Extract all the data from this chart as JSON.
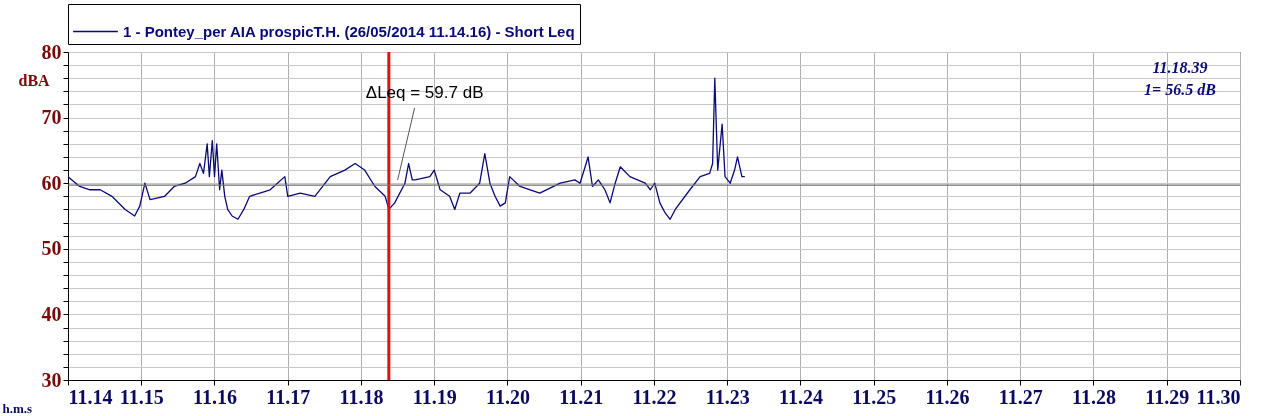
{
  "chart_data": {
    "type": "line",
    "xlabel": "h.m.s",
    "ylabel": "dBA",
    "x": [
      11.14,
      11.1416,
      11.143,
      11.1444,
      11.146,
      11.1478,
      11.1491,
      11.1498,
      11.1505,
      11.1512,
      11.1532,
      11.1545,
      11.156,
      11.1574,
      11.158,
      11.1585,
      11.159,
      11.1593,
      11.1597,
      11.16,
      11.1603,
      11.1607,
      11.161,
      11.1614,
      11.1618,
      11.1624,
      11.1632,
      11.164,
      11.1648,
      11.1662,
      11.1676,
      11.1696,
      11.17,
      11.1717,
      11.1737,
      11.1758,
      11.1778,
      11.1792,
      11.1805,
      11.1819,
      11.1833,
      11.1838,
      11.1846,
      11.186,
      11.1865,
      11.187,
      11.1874,
      11.1894,
      11.19,
      11.1908,
      11.1921,
      11.1928,
      11.1935,
      11.1949,
      11.1962,
      11.1969,
      11.1976,
      11.1983,
      11.199,
      11.1997,
      11.2003,
      11.2017,
      11.2044,
      11.2072,
      11.2092,
      11.2099,
      11.2106,
      11.211,
      11.2116,
      11.2124,
      11.2133,
      11.214,
      11.2147,
      11.2154,
      11.2167,
      11.2188,
      11.2195,
      11.2201,
      11.2208,
      11.2215,
      11.2222,
      11.2229,
      11.2249,
      11.2263,
      11.2276,
      11.228,
      11.2283,
      11.2287,
      11.2293,
      11.2297,
      11.2304,
      11.231,
      11.2314,
      11.232,
      11.2324
    ],
    "series": [
      {
        "name": "1 - Pontey_per AIA prospicT.H. (26/05/2014 11.14.16) - Short Leq",
        "color": "#0a0a78",
        "values": [
          61,
          59.5,
          59,
          59,
          58,
          56,
          55,
          56.5,
          60,
          57.5,
          58,
          59.5,
          60,
          61,
          63,
          61.5,
          66,
          61,
          66.5,
          61,
          66,
          59,
          62,
          58,
          56,
          55,
          54.5,
          56,
          58,
          58.5,
          59,
          61,
          58,
          58.5,
          58,
          61,
          62,
          63,
          62,
          59.5,
          58,
          56,
          57,
          60,
          63,
          60.5,
          60.5,
          61,
          62,
          59,
          58,
          56,
          58.5,
          58.5,
          60,
          64.5,
          60,
          58,
          56.5,
          57,
          61,
          59.5,
          58.5,
          60,
          60.5,
          60,
          62.5,
          64,
          59.5,
          60.5,
          59,
          57,
          60,
          62.5,
          61,
          60,
          59,
          60,
          57,
          55.5,
          54.5,
          56,
          59,
          61,
          61.5,
          63,
          76,
          62,
          69,
          61,
          60,
          62,
          64,
          61,
          61
        ]
      }
    ],
    "xlim": [
      11.14,
      11.3
    ],
    "xticks": [
      11.14,
      11.15,
      11.16,
      11.17,
      11.18,
      11.19,
      {
        "value": 11.2,
        "label": "11.20"
      },
      11.21,
      11.22,
      11.23,
      11.24,
      11.25,
      11.26,
      11.27,
      11.28,
      11.29,
      {
        "value": 11.3,
        "label": "11.30"
      }
    ],
    "ylim": [
      30,
      80
    ],
    "yticks": [
      30,
      {
        "value": 32,
        "label": null
      },
      {
        "value": 34,
        "label": null
      },
      {
        "value": 36,
        "label": null
      },
      {
        "value": 38,
        "label": null
      },
      40,
      {
        "value": 42,
        "label": null
      },
      {
        "value": 44,
        "label": null
      },
      {
        "value": 46,
        "label": null
      },
      {
        "value": 48,
        "label": null
      },
      50,
      {
        "value": 52,
        "label": null
      },
      {
        "value": 54,
        "label": null
      },
      {
        "value": 56,
        "label": null
      },
      {
        "value": 58,
        "label": null
      },
      60,
      {
        "value": 62,
        "label": null
      },
      {
        "value": 64,
        "label": null
      },
      {
        "value": 66,
        "label": null
      },
      {
        "value": 68,
        "label": null
      },
      70,
      {
        "value": 72,
        "label": null
      },
      {
        "value": 74,
        "label": null
      },
      {
        "value": 76,
        "label": null
      },
      {
        "value": 78,
        "label": null
      },
      80
    ],
    "grid": true,
    "legend": "top",
    "marker": "none",
    "line_style": "solid",
    "ref_lines": [
      {
        "axis": "x",
        "value": 11.1838,
        "color": "#e01010"
      },
      {
        "axis": "y",
        "value": 59.7,
        "color": "#707070"
      }
    ],
    "annotations": [
      {
        "text": "ΔLeq = 59.7 dB",
        "x": 11.185,
        "y": 60.5
      },
      "11.18.39",
      "1=   56.5 dB"
    ]
  }
}
